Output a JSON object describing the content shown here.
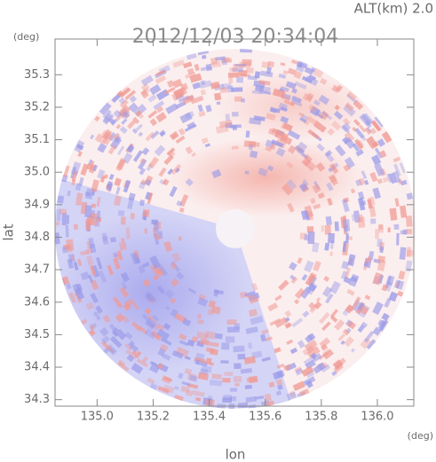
{
  "chart_data": {
    "type": "radar-field",
    "title": "2012/12/03 20:34:04",
    "annotation": "ALT(km)  2.0",
    "x_label": "lon",
    "y_label": "lat",
    "x_unit": "(deg)",
    "y_unit": "(deg)",
    "xlim": [
      134.85,
      136.13
    ],
    "ylim": [
      34.28,
      35.41
    ],
    "xticks": [
      {
        "value": 135,
        "label": "135.0"
      },
      135.2,
      135.4,
      135.6,
      135.8,
      {
        "value": 136,
        "label": "136.0"
      }
    ],
    "yticks": [
      34.3,
      34.4,
      34.5,
      34.6,
      34.7,
      34.8,
      34.9,
      {
        "value": 35,
        "label": "35.0"
      },
      35.1,
      35.2,
      35.3
    ]
  }
}
